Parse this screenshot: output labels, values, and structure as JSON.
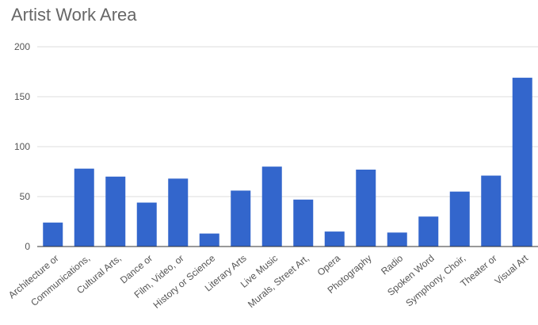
{
  "chart_data": {
    "type": "bar",
    "title": "Artist Work Area",
    "categories": [
      "Architecture or",
      "Communications,",
      "Cultural Arts,",
      "Dance or",
      "Film, Video, or",
      "History or Science",
      "Literary Arts",
      "Live Music",
      "Murals, Street Art,",
      "Opera",
      "Photography",
      "Radio",
      "Spoken Word",
      "Symphony, Choir,",
      "Theater or",
      "Visual Art"
    ],
    "values": [
      24,
      78,
      70,
      44,
      68,
      13,
      56,
      80,
      47,
      15,
      77,
      14,
      30,
      55,
      71,
      169
    ],
    "ylim": [
      0,
      200
    ],
    "yticks": [
      "0",
      "50",
      "100",
      "150",
      "200"
    ],
    "grid": true,
    "legend": "none",
    "bar_color": "#3366cc",
    "grid_color": "#dddddd",
    "axis_color": "#333333"
  }
}
